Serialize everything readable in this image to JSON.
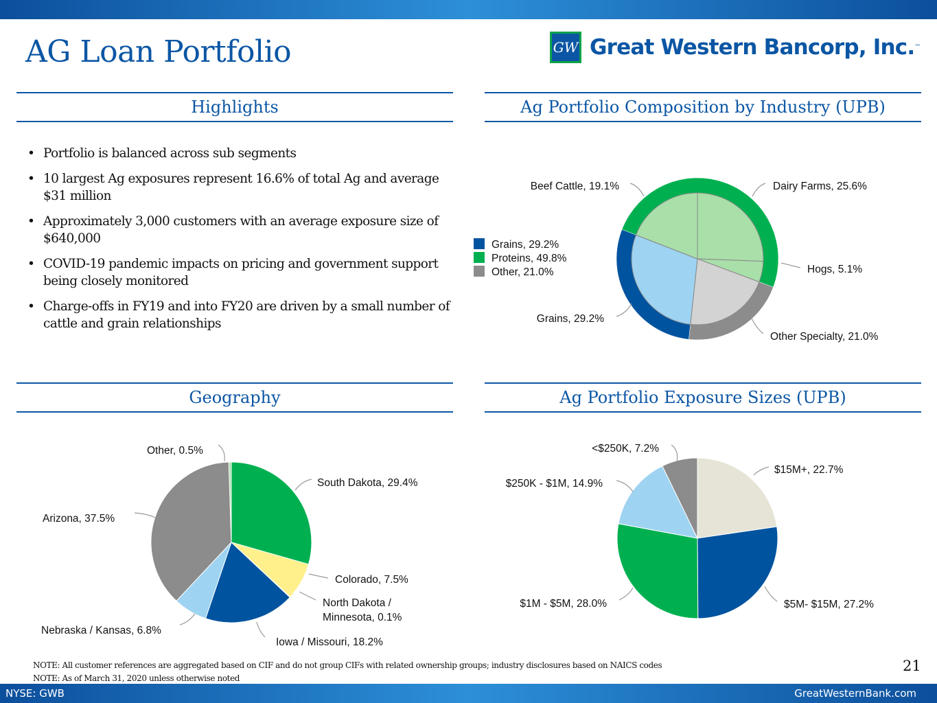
{
  "title": "AG Loan Portfolio",
  "logo": {
    "mark": "GW",
    "text": "Great Western Bancorp, Inc.",
    "tm": "™"
  },
  "sections": {
    "highlights": "Highlights",
    "composition": "Ag Portfolio Composition by Industry (UPB)",
    "geography": "Geography",
    "exposure": "Ag Portfolio Exposure Sizes (UPB)"
  },
  "highlights": [
    "Portfolio is balanced across sub segments",
    "10 largest Ag exposures represent 16.6% of total Ag and average $31 million",
    "Approximately 3,000 customers with an average exposure size of $640,000",
    "COVID-19 pandemic impacts on pricing and government support being closely monitored",
    "Charge-offs in FY19 and into FY20 are driven by a small number of cattle and grain relationships"
  ],
  "chart_data": [
    {
      "type": "pie",
      "title": "Ag Portfolio Composition by Industry (UPB)",
      "inner_slices": [
        {
          "label": "Dairy Farms, 25.6%",
          "value": 25.6,
          "color": "#a9dfa9"
        },
        {
          "label": "Hogs, 5.1%",
          "value": 5.1,
          "color": "#a9dfa9"
        },
        {
          "label": "Other Specialty, 21.0%",
          "value": 21.0,
          "color": "#d3d3d3"
        },
        {
          "label": "Grains, 29.2%",
          "value": 29.2,
          "color": "#9ed3f2"
        },
        {
          "label": "Beef Cattle, 19.1%",
          "value": 19.1,
          "color": "#a9dfa9"
        }
      ],
      "outer_ring": [
        {
          "label": "Proteins, 49.8%",
          "value": 49.8,
          "color": "#00b050"
        },
        {
          "label": "Other, 21.0%",
          "value": 21.0,
          "color": "#8c8c8c"
        },
        {
          "label": "Grains, 29.2%",
          "value": 29.2,
          "color": "#00539f"
        }
      ],
      "legend": [
        {
          "label": "Grains, 29.2%",
          "color": "#00539f"
        },
        {
          "label": "Proteins, 49.8%",
          "color": "#00b050"
        },
        {
          "label": "Other, 21.0%",
          "color": "#8c8c8c"
        }
      ]
    },
    {
      "type": "pie",
      "title": "Geography",
      "slices": [
        {
          "label": "South Dakota, 29.4%",
          "value": 29.4,
          "color": "#00b050"
        },
        {
          "label": "Colorado, 7.5%",
          "value": 7.5,
          "color": "#fff08c"
        },
        {
          "label": "North Dakota / Minnesota, 0.1%",
          "value": 0.1,
          "color": "#fff08c"
        },
        {
          "label": "Iowa / Missouri, 18.2%",
          "value": 18.2,
          "color": "#00539f"
        },
        {
          "label": "Nebraska / Kansas, 6.8%",
          "value": 6.8,
          "color": "#9ed3f2"
        },
        {
          "label": "Arizona, 37.5%",
          "value": 37.5,
          "color": "#8c8c8c"
        },
        {
          "label": "Other, 0.5%",
          "value": 0.5,
          "color": "#a9dfa9"
        }
      ]
    },
    {
      "type": "pie",
      "title": "Ag Portfolio Exposure Sizes (UPB)",
      "slices": [
        {
          "label": "$15M+, 22.7%",
          "value": 22.7,
          "color": "#e6e4d6"
        },
        {
          "label": "$5M- $15M, 27.2%",
          "value": 27.2,
          "color": "#00539f"
        },
        {
          "label": "$1M - $5M, 28.0%",
          "value": 28.0,
          "color": "#00b050"
        },
        {
          "label": "$250K - $1M, 14.9%",
          "value": 14.9,
          "color": "#9ed3f2"
        },
        {
          "label": "<$250K, 7.2%",
          "value": 7.2,
          "color": "#8c8c8c"
        }
      ]
    }
  ],
  "notes": [
    "NOTE: All customer references are aggregated based on CIF and do not group CIFs with related ownership groups; industry disclosures based on NAICS codes",
    "NOTE: As of March 31, 2020 unless otherwise noted"
  ],
  "page_number": "21",
  "footer": {
    "ticker": "NYSE: GWB",
    "website": "GreatWesternBank.com"
  }
}
